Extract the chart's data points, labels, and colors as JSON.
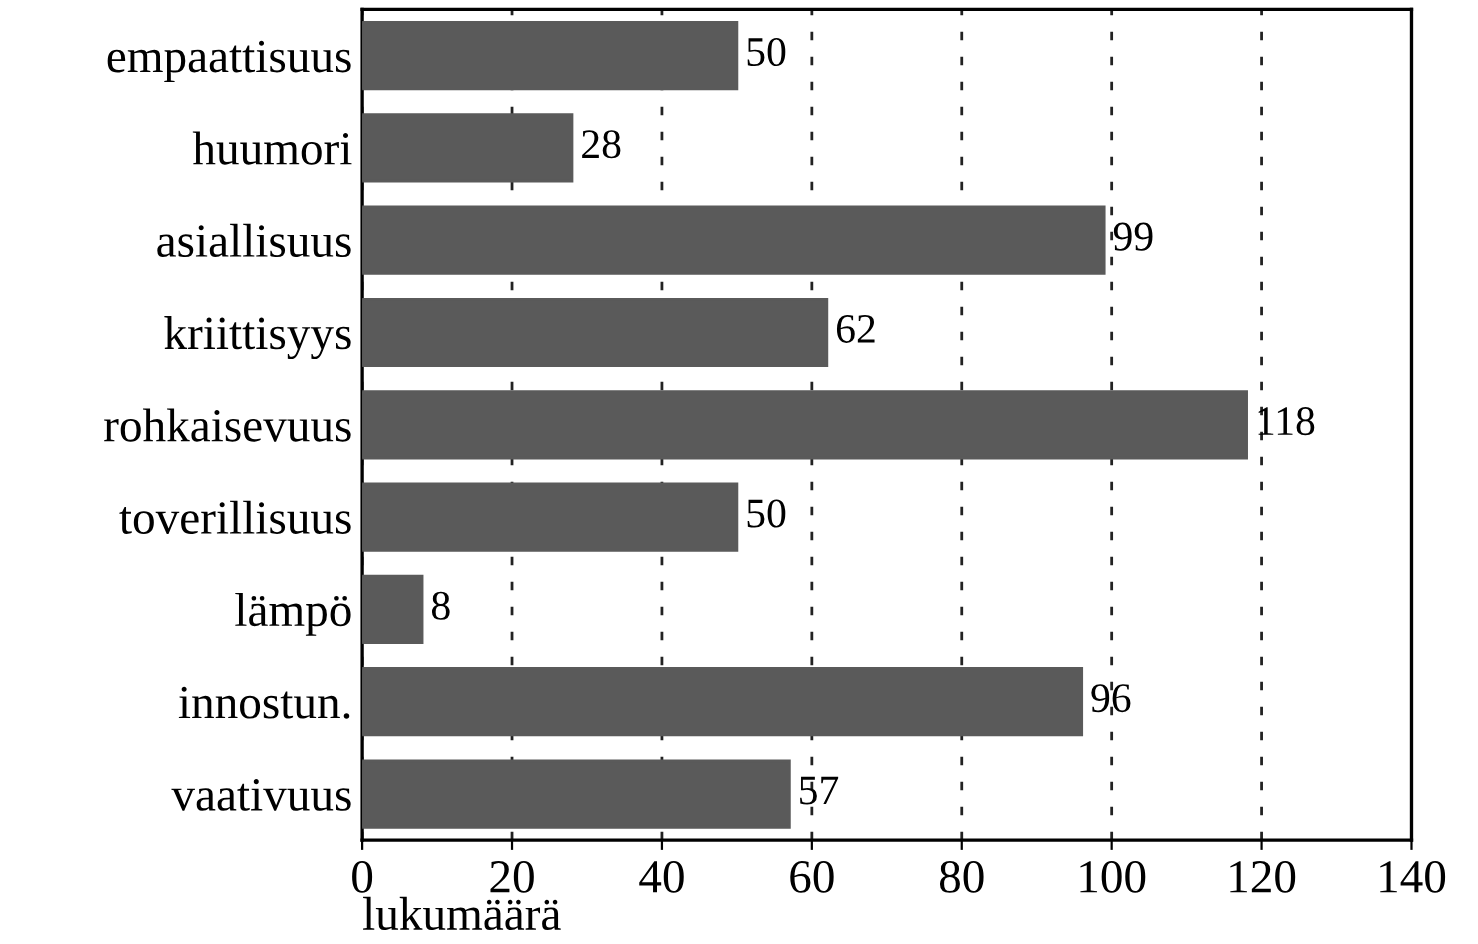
{
  "chart_data": {
    "type": "bar",
    "orientation": "horizontal",
    "xlabel": "lukumäärä",
    "categories": [
      "empaattisuus",
      "huumori",
      "asiallisuus",
      "kriittisyys",
      "rohkaisevuus",
      "toverillisuus",
      "lämpö",
      "innostun.",
      "vaativuus"
    ],
    "values": [
      50,
      28,
      99,
      62,
      118,
      50,
      8,
      96,
      57
    ],
    "color": "#5a5a5a",
    "xlim": [
      0,
      140
    ],
    "xticks": [
      0,
      20,
      40,
      60,
      80,
      100,
      120,
      140
    ],
    "grid": "x",
    "data_labels": true
  }
}
